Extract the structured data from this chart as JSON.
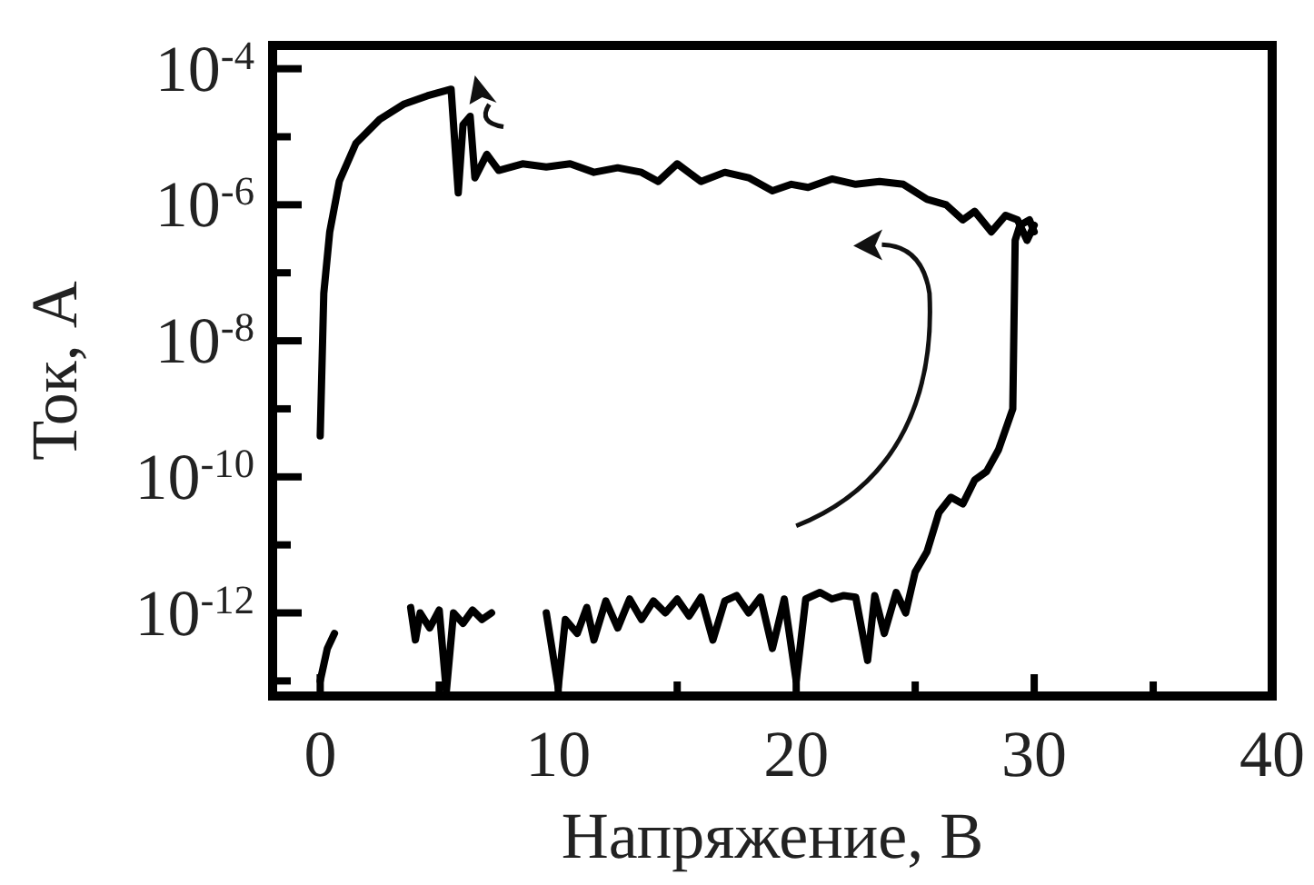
{
  "chart_data": {
    "type": "line",
    "xlabel": "Напряжение, В",
    "ylabel": "Ток, А",
    "log": "y",
    "grid": false,
    "marker": "none",
    "line_style": "solid",
    "xlim": [
      -2,
      40
    ],
    "ylim": [
      6e-14,
      0.00022
    ],
    "xticks": [
      0,
      {
        "value": 5,
        "label": null
      },
      10,
      {
        "value": 15,
        "label": null
      },
      20,
      {
        "value": 25,
        "label": null
      },
      30,
      {
        "value": 35,
        "label": null
      },
      40
    ],
    "yticks": [
      {
        "value": 1e-13,
        "label": null
      },
      {
        "value": 1e-12,
        "label": "10$^{-12}$"
      },
      {
        "value": 1e-11,
        "label": null
      },
      {
        "value": 1e-10,
        "label": "10$^{-10}$"
      },
      {
        "value": 1e-09,
        "label": null
      },
      {
        "value": 1e-08,
        "label": "10$^{-8}$"
      },
      {
        "value": 1e-07,
        "label": null
      },
      {
        "value": 1e-06,
        "label": "10$^{-6}$"
      },
      {
        "value": 1e-05,
        "label": null
      },
      {
        "value": 0.0001,
        "label": "10$^{-4}$"
      }
    ],
    "series": [
      {
        "color": "#000000",
        "x": [
          0,
          0.3,
          0.6,
          1,
          3.8,
          4.0,
          4.2,
          4.6,
          5.0,
          5.3,
          5.6,
          6.0,
          6.4,
          6.8,
          7.2,
          7.5,
          9.5,
          10,
          10.3,
          10.8,
          11.2,
          11.5,
          12,
          12.5,
          13,
          13.5,
          14,
          14.5,
          15,
          15.5,
          16,
          16.5,
          17,
          17.5,
          18,
          18.5,
          19,
          19.5,
          20,
          20.4,
          21,
          21.5,
          22,
          22.5,
          23,
          23.3,
          23.7,
          24.2,
          24.6,
          25,
          25.5,
          26,
          26.5,
          27,
          27.5,
          28,
          28.5,
          28.8,
          29.1,
          29.2,
          29.4,
          29.8,
          30
        ],
        "values": [
          1e-13,
          3e-13,
          5e-13,
          null,
          1.2e-12,
          4e-13,
          1e-12,
          6e-13,
          1.1e-12,
          7e-14,
          1e-12,
          7e-13,
          1.1e-12,
          8e-13,
          1e-12,
          null,
          1e-12,
          8e-14,
          8e-13,
          5e-13,
          1.2e-12,
          4e-13,
          1.5e-12,
          6e-13,
          1.6e-12,
          8e-13,
          1.5e-12,
          1e-12,
          1.6e-12,
          9e-13,
          1.7e-12,
          4e-13,
          1.5e-12,
          1.8e-12,
          1e-12,
          1.7e-12,
          3e-13,
          1.6e-12,
          1e-13,
          1.6e-12,
          2e-12,
          1.6e-12,
          1.8e-12,
          1.7e-12,
          2e-13,
          1.8e-12,
          5e-13,
          2e-12,
          1e-12,
          4e-12,
          8e-12,
          3e-11,
          5e-11,
          4e-11,
          9e-11,
          1.2e-10,
          2.5e-10,
          5e-10,
          1e-09,
          3e-07,
          5e-07,
          6e-07,
          4e-07
        ]
      },
      {
        "color": "#000000",
        "x": [
          30,
          29.7,
          29.3,
          28.8,
          28.2,
          27.5,
          27,
          26.3,
          25.5,
          24.5,
          23.5,
          22.5,
          21.5,
          20.5,
          19.8,
          19,
          18,
          17,
          16,
          15,
          14.2,
          13.5,
          12.5,
          11.5,
          10.5,
          9.5,
          8.5,
          7.5,
          7,
          6.5,
          6.3,
          6.0,
          5.8,
          5.5,
          4.5,
          3.5,
          2.5,
          1.5,
          0.8,
          0.4,
          0.15,
          0
        ],
        "values": [
          5e-07,
          3e-07,
          6e-07,
          7e-07,
          4e-07,
          8e-07,
          6e-07,
          1e-06,
          1.2e-06,
          2e-06,
          2.2e-06,
          2e-06,
          2.4e-06,
          1.8e-06,
          2e-06,
          1.6e-06,
          2.5e-06,
          3e-06,
          2.2e-06,
          4e-06,
          2.2e-06,
          3e-06,
          3.5e-06,
          3e-06,
          4e-06,
          3.6e-06,
          4e-06,
          3.2e-06,
          5.5e-06,
          2.5e-06,
          2e-05,
          1.5e-05,
          1.5e-06,
          5e-05,
          4e-05,
          3e-05,
          1.8e-05,
          8e-06,
          2.2e-06,
          4e-07,
          5e-08,
          4e-10
        ]
      }
    ]
  }
}
